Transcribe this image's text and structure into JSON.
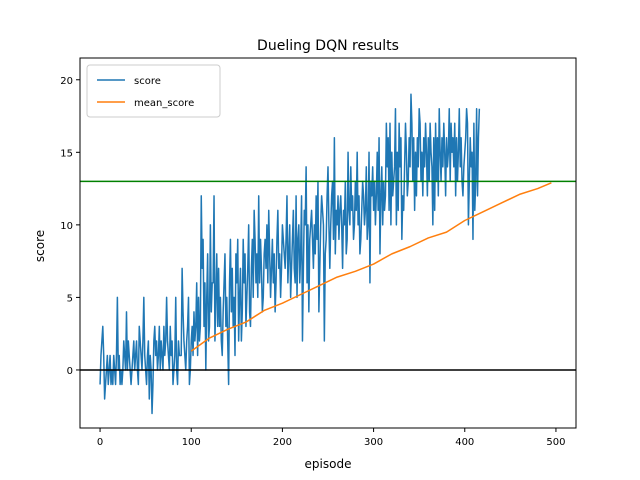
{
  "chart_data": {
    "type": "line",
    "title": "Dueling DQN results",
    "xlabel": "episode",
    "ylabel": "score",
    "xlim": [
      -22,
      522
    ],
    "ylim": [
      -4,
      21.5
    ],
    "xticks": [
      0,
      100,
      200,
      300,
      400,
      500
    ],
    "yticks": [
      0,
      5,
      10,
      15,
      20
    ],
    "grid": false,
    "legend_position": "top-left",
    "series": [
      {
        "name": "score",
        "color": "#1f77b4",
        "x_start": 0,
        "values": [
          -1,
          1,
          2,
          3,
          1,
          -2,
          -1,
          0,
          1,
          -1,
          0,
          1,
          -1,
          0,
          -1,
          1,
          0,
          -1,
          1,
          5,
          0,
          1,
          -1,
          0,
          -1,
          0,
          2,
          1,
          0,
          4,
          0,
          2,
          1,
          0,
          -1,
          0,
          1,
          2,
          0,
          1,
          2,
          0,
          -1,
          3,
          2,
          1,
          0,
          2,
          5,
          1,
          0,
          -1,
          1,
          2,
          -2,
          1,
          0,
          -3,
          -1,
          2,
          3,
          1,
          2,
          0,
          1,
          3,
          0,
          2,
          1,
          0,
          3,
          1,
          2,
          5,
          2,
          1,
          0,
          3,
          1,
          2,
          -1,
          0,
          1,
          5,
          0,
          -1,
          2,
          1,
          1,
          1,
          7,
          4,
          2,
          1,
          0,
          2,
          3,
          5,
          -1,
          0,
          2,
          3,
          1,
          4,
          2,
          3,
          6,
          1,
          5,
          2,
          3,
          12,
          7,
          9,
          3,
          6,
          0,
          5,
          8,
          2,
          3,
          10,
          4,
          6,
          6,
          12,
          2,
          5,
          8,
          3,
          7,
          3,
          5,
          2,
          1,
          4,
          6,
          8,
          3,
          5,
          2,
          -1,
          6,
          9,
          4,
          7,
          3,
          5,
          1,
          8,
          6,
          9,
          2,
          5,
          7,
          2,
          4,
          9,
          6,
          8,
          3,
          5,
          7,
          10,
          4,
          3,
          7,
          9,
          5,
          11,
          9,
          6,
          8,
          5,
          12,
          6,
          9,
          7,
          4,
          5,
          8,
          9,
          7,
          10,
          6,
          11,
          8,
          5,
          7,
          9,
          6,
          8,
          4,
          6,
          9,
          11,
          7,
          8,
          5,
          7,
          10,
          9,
          8,
          7,
          9,
          12,
          6,
          8,
          10,
          5,
          7,
          9,
          11,
          7,
          6,
          12,
          5,
          9,
          10,
          6,
          8,
          12,
          2,
          7,
          11,
          10,
          14,
          6,
          10,
          4,
          9,
          10,
          11,
          9,
          7,
          10,
          8,
          12,
          9,
          13,
          4,
          7,
          10,
          12,
          11,
          10,
          2,
          8,
          9,
          12,
          14,
          10,
          7,
          10,
          12,
          13,
          9,
          16,
          8,
          11,
          10,
          12,
          9,
          11,
          12,
          10,
          7,
          11,
          10,
          13,
          8,
          9,
          15,
          11,
          10,
          14,
          11,
          12,
          9,
          10,
          13,
          11,
          15,
          10,
          12,
          8,
          9,
          11,
          13,
          12,
          10,
          11,
          14,
          9,
          10,
          15,
          6,
          13,
          12,
          14,
          11,
          13,
          10,
          12,
          15,
          11,
          16,
          8,
          12,
          14,
          10,
          13,
          11,
          12,
          17,
          14,
          16,
          11,
          17,
          10,
          15,
          12,
          13,
          14,
          18,
          10,
          15,
          11,
          17,
          14,
          16,
          9,
          12,
          11,
          14,
          17,
          15,
          12,
          13,
          16,
          14,
          19,
          17,
          13,
          16,
          11,
          15,
          12,
          16,
          14,
          18,
          17,
          13,
          15,
          12,
          16,
          14,
          17,
          15,
          12,
          16,
          13,
          17,
          15,
          14,
          10,
          16,
          11,
          17,
          13,
          16,
          12,
          18,
          15,
          13,
          16,
          14,
          17,
          15,
          12,
          16,
          14,
          15,
          18,
          13,
          17,
          15,
          16,
          14,
          17,
          12,
          16,
          13,
          15,
          18,
          14,
          16,
          13,
          12,
          14,
          15,
          16,
          18,
          17,
          10,
          13,
          16,
          14,
          15,
          9,
          17,
          11,
          13,
          18,
          12,
          16,
          18
        ]
      },
      {
        "name": "mean_score",
        "color": "#ff7f0e",
        "x": [
          100,
          120,
          140,
          160,
          180,
          200,
          220,
          240,
          260,
          280,
          300,
          320,
          340,
          360,
          380,
          400,
          420,
          440,
          460,
          480,
          495
        ],
        "values": [
          1.3,
          2.2,
          2.8,
          3.3,
          4.1,
          4.6,
          5.2,
          5.8,
          6.4,
          6.8,
          7.3,
          8.0,
          8.5,
          9.1,
          9.5,
          10.3,
          10.9,
          11.5,
          12.1,
          12.5,
          12.9
        ]
      }
    ],
    "reference_lines": [
      {
        "y": 13,
        "color": "#008000"
      },
      {
        "y": 0,
        "color": "#000000"
      }
    ]
  }
}
